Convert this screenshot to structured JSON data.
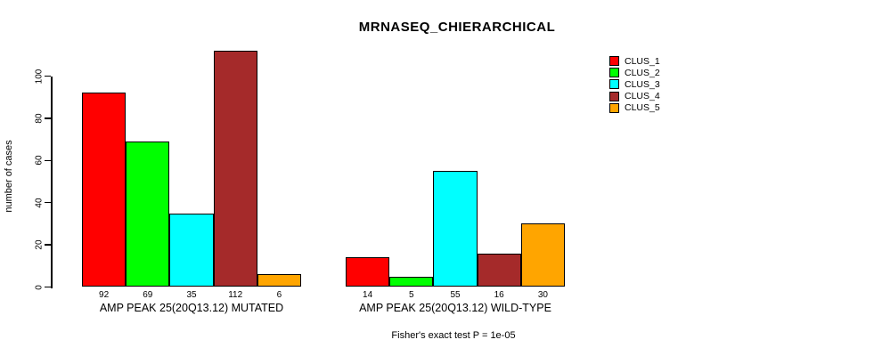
{
  "chart_data": {
    "type": "bar",
    "title": "MRNASEQ_CHIERARCHICAL",
    "xlabel": "",
    "ylabel": "number of cases",
    "yticks": [
      0,
      20,
      40,
      60,
      80,
      100
    ],
    "ylim": [
      0,
      115
    ],
    "grid": false,
    "legend_position": "right-outside-top",
    "series": [
      "CLUS_1",
      "CLUS_2",
      "CLUS_3",
      "CLUS_4",
      "CLUS_5"
    ],
    "colors": [
      "#ff0000",
      "#00ff00",
      "#00ffff",
      "#a52a2a",
      "#ffa500"
    ],
    "groups": [
      {
        "label": "AMP PEAK 25(20Q13.12) MUTATED",
        "values": [
          92,
          69,
          35,
          112,
          6
        ]
      },
      {
        "label": "AMP PEAK 25(20Q13.12) WILD-TYPE",
        "values": [
          14,
          5,
          55,
          16,
          30
        ]
      }
    ],
    "bar_value_labels": true,
    "annotation": "Fisher's exact test P = 1e-05"
  }
}
